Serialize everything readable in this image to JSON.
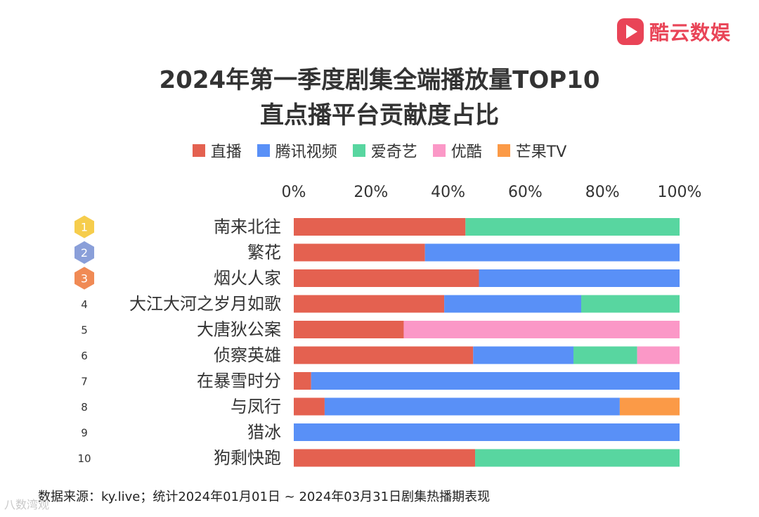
{
  "logo": {
    "text": "酷云数娱"
  },
  "title_line1": "2024年第一季度剧集全端播放量TOP10",
  "title_line2": "直点播平台贡献度占比",
  "source": "数据来源：ky.live；统计2024年01月01日 ~ 2024年03月31日剧集热播期表现",
  "watermark": "八数湾观",
  "colors": {
    "直播": "#e46150",
    "腾讯视频": "#5990f7",
    "爱奇艺": "#58d6a0",
    "优酷": "#fb98c7",
    "芒果TV": "#fb9a47",
    "rank1": "#f6cd4c",
    "rank2": "#8a9fd9",
    "rank3": "#f08a55"
  },
  "chart_data": {
    "type": "bar",
    "orientation": "horizontal",
    "stacked": true,
    "normalized": true,
    "title": "2024年第一季度剧集全端播放量TOP10 直点播平台贡献度占比",
    "xlim": [
      0,
      100
    ],
    "x_ticks": [
      "0%",
      "20%",
      "40%",
      "60%",
      "80%",
      "100%"
    ],
    "legend": [
      "直播",
      "腾讯视频",
      "爱奇艺",
      "优酷",
      "芒果TV"
    ],
    "ranks": [
      "1",
      "2",
      "3",
      "4",
      "5",
      "6",
      "7",
      "8",
      "9",
      "10"
    ],
    "categories": [
      "南来北往",
      "繁花",
      "烟火人家",
      "大江大河之岁月如歌",
      "大唐狄公案",
      "侦察英雄",
      "在暴雪时分",
      "与凤行",
      "猎冰",
      "狗剩快跑"
    ],
    "series": [
      {
        "name": "直播",
        "values": [
          44.5,
          34,
          48,
          39,
          28.5,
          46.5,
          4.5,
          8,
          0,
          47
        ]
      },
      {
        "name": "腾讯视频",
        "values": [
          0,
          66,
          52,
          35.5,
          0,
          26,
          95.5,
          76.5,
          100,
          0
        ]
      },
      {
        "name": "爱奇艺",
        "values": [
          55.5,
          0,
          0,
          25.5,
          0,
          16.5,
          0,
          0,
          0,
          53
        ]
      },
      {
        "name": "优酷",
        "values": [
          0,
          0,
          0,
          0,
          71.5,
          11,
          0,
          0,
          0,
          0
        ]
      },
      {
        "name": "芒果TV",
        "values": [
          0,
          0,
          0,
          0,
          0,
          0,
          0,
          15.5,
          0,
          0
        ]
      }
    ]
  }
}
